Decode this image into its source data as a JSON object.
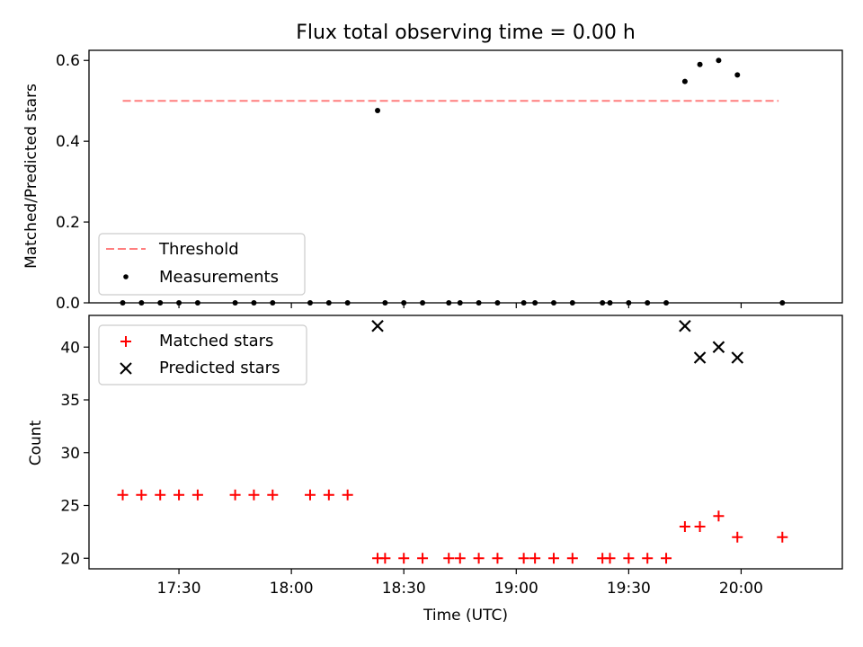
{
  "chart_data": [
    {
      "type": "scatter",
      "title": "Flux total observing time = 0.00 h",
      "ylabel": "Matched/Predicted stars",
      "xlabel": "",
      "ylim": [
        0.0,
        0.625
      ],
      "yticks": [
        0.0,
        0.2,
        0.4,
        0.6
      ],
      "ytick_labels": [
        "0.0",
        "0.2",
        "0.4",
        "0.6"
      ],
      "xlim": [
        "17:06",
        "20:27"
      ],
      "xticks": [
        "17:30",
        "18:00",
        "18:30",
        "19:00",
        "19:30",
        "20:00"
      ],
      "grid": false,
      "legend_position": "lower-left",
      "threshold": {
        "name": "Threshold",
        "y": 0.5,
        "x_start": "17:15",
        "x_end": "20:10",
        "color": "#ff7f7f",
        "style": "dashed"
      },
      "series": [
        {
          "name": "Measurements",
          "marker": "dot",
          "color": "#000000",
          "points": [
            [
              "17:15",
              0.0
            ],
            [
              "17:20",
              0.0
            ],
            [
              "17:25",
              0.0
            ],
            [
              "17:30",
              0.0
            ],
            [
              "17:35",
              0.0
            ],
            [
              "17:45",
              0.0
            ],
            [
              "17:50",
              0.0
            ],
            [
              "17:55",
              0.0
            ],
            [
              "18:05",
              0.0
            ],
            [
              "18:10",
              0.0
            ],
            [
              "18:15",
              0.0
            ],
            [
              "18:23",
              0.476
            ],
            [
              "18:25",
              0.0
            ],
            [
              "18:30",
              0.0
            ],
            [
              "18:35",
              0.0
            ],
            [
              "18:42",
              0.0
            ],
            [
              "18:45",
              0.0
            ],
            [
              "18:50",
              0.0
            ],
            [
              "18:55",
              0.0
            ],
            [
              "19:02",
              0.0
            ],
            [
              "19:05",
              0.0
            ],
            [
              "19:10",
              0.0
            ],
            [
              "19:15",
              0.0
            ],
            [
              "19:23",
              0.0
            ],
            [
              "19:25",
              0.0
            ],
            [
              "19:30",
              0.0
            ],
            [
              "19:35",
              0.0
            ],
            [
              "19:40",
              0.0
            ],
            [
              "19:45",
              0.548
            ],
            [
              "19:49",
              0.59
            ],
            [
              "19:54",
              0.6
            ],
            [
              "19:59",
              0.564
            ],
            [
              "20:11",
              0.0
            ]
          ]
        }
      ]
    },
    {
      "type": "scatter",
      "title": "",
      "ylabel": "Count",
      "xlabel": "Time (UTC)",
      "ylim": [
        19,
        43
      ],
      "yticks": [
        20,
        25,
        30,
        35,
        40
      ],
      "ytick_labels": [
        "20",
        "25",
        "30",
        "35",
        "40"
      ],
      "xlim": [
        "17:06",
        "20:27"
      ],
      "xticks": [
        "17:30",
        "18:00",
        "18:30",
        "19:00",
        "19:30",
        "20:00"
      ],
      "xtick_labels": [
        "17:30",
        "18:00",
        "18:30",
        "19:00",
        "19:30",
        "20:00"
      ],
      "grid": false,
      "legend_position": "upper-left",
      "series": [
        {
          "name": "Matched stars",
          "marker": "plus",
          "color": "#ff0000",
          "points": [
            [
              "17:15",
              26
            ],
            [
              "17:20",
              26
            ],
            [
              "17:25",
              26
            ],
            [
              "17:30",
              26
            ],
            [
              "17:35",
              26
            ],
            [
              "17:45",
              26
            ],
            [
              "17:50",
              26
            ],
            [
              "17:55",
              26
            ],
            [
              "18:05",
              26
            ],
            [
              "18:10",
              26
            ],
            [
              "18:15",
              26
            ],
            [
              "18:23",
              20
            ],
            [
              "18:25",
              20
            ],
            [
              "18:30",
              20
            ],
            [
              "18:35",
              20
            ],
            [
              "18:42",
              20
            ],
            [
              "18:45",
              20
            ],
            [
              "18:50",
              20
            ],
            [
              "18:55",
              20
            ],
            [
              "19:02",
              20
            ],
            [
              "19:05",
              20
            ],
            [
              "19:10",
              20
            ],
            [
              "19:15",
              20
            ],
            [
              "19:23",
              20
            ],
            [
              "19:25",
              20
            ],
            [
              "19:30",
              20
            ],
            [
              "19:35",
              20
            ],
            [
              "19:40",
              20
            ],
            [
              "19:45",
              23
            ],
            [
              "19:49",
              23
            ],
            [
              "19:54",
              24
            ],
            [
              "19:59",
              22
            ],
            [
              "20:11",
              22
            ]
          ]
        },
        {
          "name": "Predicted stars",
          "marker": "x",
          "color": "#000000",
          "points": [
            [
              "18:23",
              42
            ],
            [
              "19:45",
              42
            ],
            [
              "19:49",
              39
            ],
            [
              "19:54",
              40
            ],
            [
              "19:59",
              39
            ]
          ]
        }
      ]
    }
  ]
}
